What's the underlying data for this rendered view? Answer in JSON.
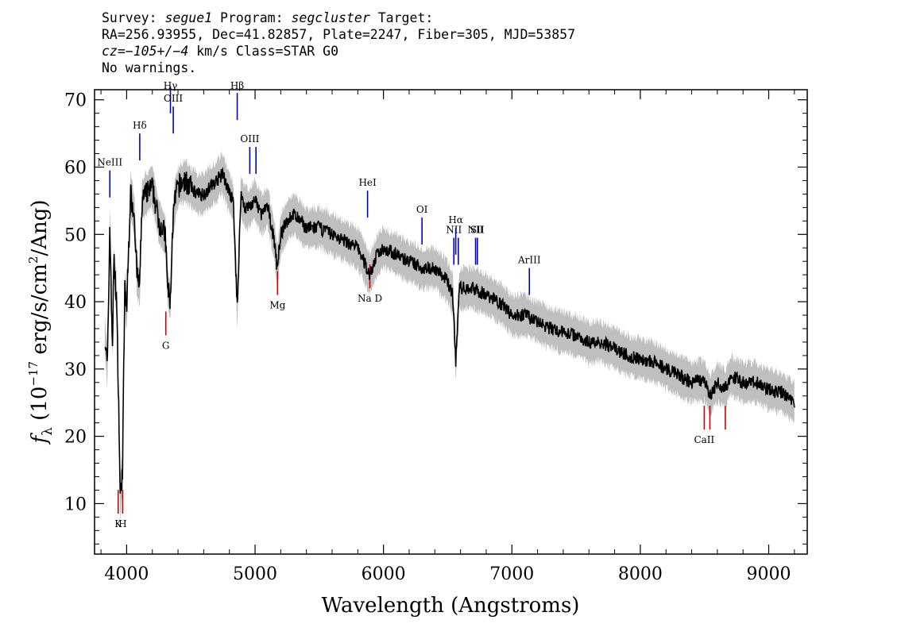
{
  "header": {
    "line1": {
      "survey_label": "Survey:",
      "survey": "segue1",
      "program_label": "Program:",
      "program": "segcluster",
      "target_label": "Target:"
    },
    "line2": "RA=256.93955, Dec=41.82857, Plate=2247, Fiber=305, MJD=53857",
    "line3": {
      "cz": "cz=−105+/−4",
      "rest": " km/s Class=STAR G0"
    },
    "line4": "No warnings."
  },
  "chart_data": {
    "type": "line",
    "xlabel": "Wavelength (Angstroms)",
    "ylabel": "f_λ (10^-17 erg/s/cm^2/Ang)",
    "xlim": [
      3750,
      9300
    ],
    "ylim": [
      2.5,
      71.5
    ],
    "xticks": [
      4000,
      5000,
      6000,
      7000,
      8000,
      9000
    ],
    "yticks": [
      10,
      20,
      30,
      40,
      50,
      60,
      70
    ],
    "series": [
      {
        "color": "#000000",
        "noise_color": "#bfbfbf",
        "x": [
          3830,
          3850,
          3870,
          3880,
          3890,
          3900,
          3920,
          3935,
          3950,
          3968,
          3985,
          4000,
          4030,
          4060,
          4080,
          4101,
          4120,
          4150,
          4200,
          4250,
          4300,
          4320,
          4340,
          4360,
          4383,
          4400,
          4450,
          4500,
          4550,
          4600,
          4650,
          4700,
          4750,
          4800,
          4830,
          4861,
          4890,
          4920,
          4950,
          5000,
          5050,
          5100,
          5150,
          5172,
          5200,
          5250,
          5300,
          5400,
          5500,
          5600,
          5700,
          5800,
          5893,
          5950,
          6000,
          6100,
          6200,
          6300,
          6400,
          6500,
          6540,
          6563,
          6590,
          6650,
          6700,
          6800,
          6900,
          7000,
          7100,
          7200,
          7300,
          7400,
          7500,
          7600,
          7700,
          7800,
          7900,
          8000,
          8100,
          8200,
          8300,
          8400,
          8498,
          8542,
          8600,
          8662,
          8700,
          8800,
          8900,
          9000,
          9100,
          9200
        ],
        "y": [
          35,
          30,
          52,
          40,
          34,
          46,
          41,
          28,
          11,
          15,
          42,
          39,
          56,
          53,
          44,
          42,
          55,
          56,
          57,
          52,
          50,
          42,
          40,
          52,
          56,
          57,
          58,
          57,
          56,
          56,
          57,
          58,
          59,
          56,
          55,
          39,
          56,
          54,
          54,
          55,
          53,
          54,
          49,
          45,
          50,
          52,
          53,
          51,
          51,
          50,
          49,
          48,
          44,
          47,
          48,
          47,
          46,
          45,
          45,
          43,
          41,
          31,
          42,
          42,
          42,
          41,
          40,
          38,
          38,
          37,
          36,
          35.5,
          35,
          34,
          34,
          33,
          32,
          31.5,
          31,
          30,
          29,
          28,
          28.5,
          26,
          28,
          27,
          29,
          28,
          28,
          27,
          26.5,
          25
        ]
      }
    ],
    "emission_lines": [
      {
        "label": "NeIII",
        "wave": 3869,
        "y": 59.5,
        "color": "#0000cc"
      },
      {
        "label": "Hδ",
        "wave": 4102,
        "y": 65,
        "color": "#0000cc"
      },
      {
        "label": "Hγ",
        "wave": 4341,
        "y": 72,
        "color": "#0000cc"
      },
      {
        "label": "OIII",
        "wave": 4363,
        "y": 69,
        "color": "#0000cc"
      },
      {
        "label": "Hβ",
        "wave": 4861,
        "y": 71,
        "color": "#0000cc"
      },
      {
        "label": "OIII",
        "wave": 4959,
        "y": 63,
        "color": "#0000cc"
      },
      {
        "label": "",
        "wave": 5007,
        "y": 63,
        "color": "#0000cc"
      },
      {
        "label": "HeI",
        "wave": 5876,
        "y": 56.5,
        "color": "#0000cc"
      },
      {
        "label": "OI",
        "wave": 6300,
        "y": 52.5,
        "color": "#0000cc"
      },
      {
        "label": "NII",
        "wave": 6548,
        "y": 49.5,
        "color": "#0000cc"
      },
      {
        "label": "Hα",
        "wave": 6563,
        "y": 51,
        "color": "#0000cc"
      },
      {
        "label": "",
        "wave": 6583,
        "y": 49.5,
        "color": "#0000cc"
      },
      {
        "label": "NII",
        "wave": 6717,
        "y": 49.5,
        "color": "#0000cc"
      },
      {
        "label": "SII",
        "wave": 6731,
        "y": 49.5,
        "color": "#0000cc"
      },
      {
        "label": "ArIII",
        "wave": 7136,
        "y": 45,
        "color": "#0000cc"
      }
    ],
    "absorption_lines": [
      {
        "label": "K",
        "wave": 3934,
        "y": 8.5,
        "color": "#cc0000"
      },
      {
        "label": "H",
        "wave": 3969,
        "y": 8.5,
        "color": "#cc0000"
      },
      {
        "label": "G",
        "wave": 4305,
        "y": 35,
        "color": "#cc0000"
      },
      {
        "label": "Mg",
        "wave": 5175,
        "y": 41,
        "color": "#cc0000"
      },
      {
        "label": "Na D",
        "wave": 5894,
        "y": 42,
        "color": "#cc0000"
      },
      {
        "label": "CaII",
        "wave": 8498,
        "y": 21,
        "color": "#cc0000"
      },
      {
        "label": "",
        "wave": 8542,
        "y": 21,
        "color": "#cc0000"
      },
      {
        "label": "",
        "wave": 8662,
        "y": 21,
        "color": "#cc0000"
      }
    ]
  }
}
